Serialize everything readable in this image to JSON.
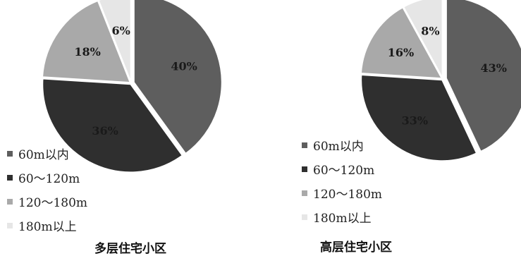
{
  "colors": {
    "60m以内": "#5e5e5e",
    "60～120m": "#2f2f2f",
    "120～180m": "#a9a9a9",
    "180m以上": "#e6e6e6"
  },
  "chart_data": [
    {
      "type": "pie",
      "title": "多层住宅小区",
      "labels": [
        "60m以内",
        "60～120m",
        "120～180m",
        "180m以上"
      ],
      "values": [
        40,
        36,
        18,
        6
      ],
      "value_labels": [
        "40%",
        "36%",
        "18%",
        "6%"
      ],
      "legend": "bottom-left"
    },
    {
      "type": "pie",
      "title": "高层住宅小区",
      "labels": [
        "60m以内",
        "60～120m",
        "120～180m",
        "180m以上"
      ],
      "values": [
        43,
        33,
        16,
        8
      ],
      "value_labels": [
        "43%",
        "33%",
        "16%",
        "8%"
      ],
      "legend": "bottom-left"
    }
  ]
}
